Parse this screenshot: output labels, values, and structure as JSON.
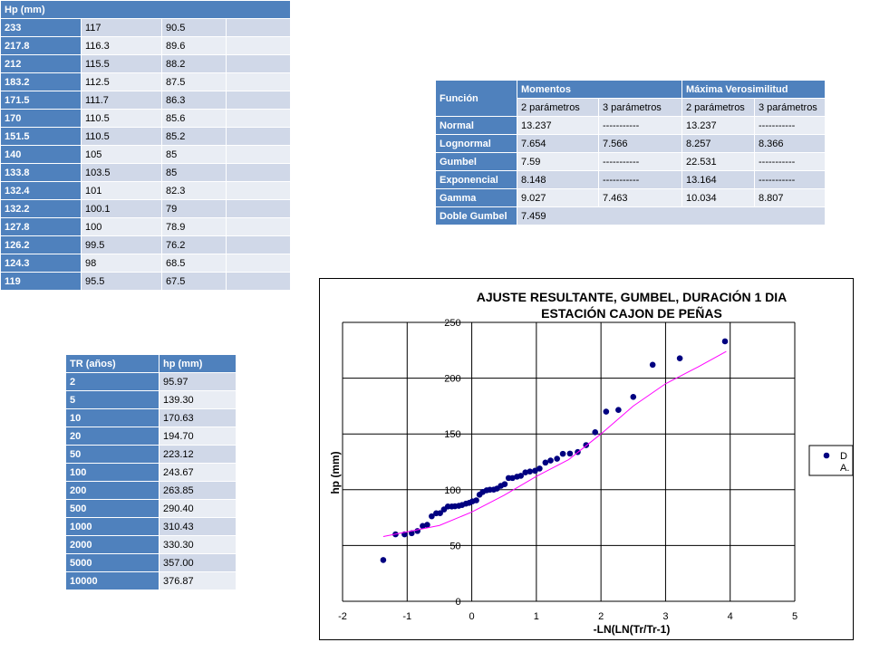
{
  "table1": {
    "header": "Hp (mm)",
    "rows": [
      [
        "233",
        "117",
        "90.5"
      ],
      [
        "217.8",
        "116.3",
        "89.6"
      ],
      [
        "212",
        "115.5",
        "88.2"
      ],
      [
        "183.2",
        "112.5",
        "87.5"
      ],
      [
        "171.5",
        "111.7",
        "86.3"
      ],
      [
        "170",
        "110.5",
        "85.6"
      ],
      [
        "151.5",
        "110.5",
        "85.2"
      ],
      [
        "140",
        "105",
        "85"
      ],
      [
        "133.8",
        "103.5",
        "85"
      ],
      [
        "132.4",
        "101",
        "82.3"
      ],
      [
        "132.2",
        "100.1",
        "79"
      ],
      [
        "127.8",
        "100",
        "78.9"
      ],
      [
        "126.2",
        "99.5",
        "76.2"
      ],
      [
        "124.3",
        "98",
        "68.5"
      ],
      [
        "119",
        "95.5",
        "67.5"
      ]
    ]
  },
  "table2": {
    "funcion": "Función",
    "groups": [
      "Momentos",
      "Máxima Verosimilitud"
    ],
    "subheaders": [
      "2 parámetros",
      "3 parámetros",
      "2 parámetros",
      "3 parámetros"
    ],
    "rows": [
      [
        "Normal",
        "13.237",
        "-----------",
        "13.237",
        "-----------"
      ],
      [
        "Lognormal",
        "7.654",
        "7.566",
        "8.257",
        "8.366"
      ],
      [
        "Gumbel",
        "7.59",
        "-----------",
        "22.531",
        "-----------"
      ],
      [
        "Exponencial",
        "8.148",
        "-----------",
        "13.164",
        "-----------"
      ],
      [
        "Gamma",
        "9.027",
        "7.463",
        "10.034",
        "8.807"
      ],
      [
        "Doble Gumbel",
        "7.459"
      ]
    ]
  },
  "table3": {
    "headers": [
      "TR (años)",
      "hp (mm)"
    ],
    "rows": [
      [
        "2",
        "95.97"
      ],
      [
        "5",
        "139.30"
      ],
      [
        "10",
        "170.63"
      ],
      [
        "20",
        "194.70"
      ],
      [
        "50",
        "223.12"
      ],
      [
        "100",
        "243.67"
      ],
      [
        "200",
        "263.85"
      ],
      [
        "500",
        "290.40"
      ],
      [
        "1000",
        "310.43"
      ],
      [
        "2000",
        "330.30"
      ],
      [
        "5000",
        "357.00"
      ],
      [
        "10000",
        "376.87"
      ]
    ]
  },
  "chart_data": {
    "type": "scatter",
    "title": "AJUSTE RESULTANTE, GUMBEL, DURACIÓN 1 DIA",
    "subtitle": "ESTACIÓN CAJON DE PEÑAS",
    "x_label": "-LN(LN(Tr/Tr-1)",
    "y_label": "hp (mm)",
    "xlim": [
      -2,
      5
    ],
    "xticks": [
      -2,
      -1,
      0,
      1,
      2,
      3,
      4,
      5
    ],
    "ylim": [
      0,
      250
    ],
    "yticks": [
      0,
      50,
      100,
      150,
      200,
      250
    ],
    "grid": true,
    "series": [
      {
        "name": "D",
        "color": "#000080",
        "mode": "markers",
        "x": [
          3.92,
          3.22,
          2.8,
          2.5,
          2.27,
          2.08,
          1.91,
          1.77,
          1.64,
          1.52,
          1.41,
          1.32,
          1.22,
          1.14,
          1.05,
          0.98,
          0.9,
          0.83,
          0.76,
          0.7,
          0.63,
          0.57,
          0.51,
          0.45,
          0.39,
          0.34,
          0.28,
          0.23,
          0.17,
          0.12,
          0.07,
          0.01,
          -0.04,
          -0.09,
          -0.15,
          -0.2,
          -0.26,
          -0.31,
          -0.37,
          -0.43,
          -0.49,
          -0.55,
          -0.62,
          -0.69,
          -0.76,
          -0.84,
          -0.93,
          -1.04,
          -1.18,
          -1.37
        ],
        "values": [
          233,
          217.8,
          212,
          183.2,
          171.5,
          170,
          151.5,
          140,
          133.8,
          132.4,
          132.2,
          127.8,
          126.2,
          124.3,
          119,
          117,
          116.3,
          115.5,
          112.5,
          111.7,
          110.5,
          110.5,
          105,
          103.5,
          101,
          100.1,
          100,
          99.5,
          98,
          95.5,
          90.5,
          89.6,
          88.2,
          87.5,
          86.3,
          85.6,
          85.2,
          85,
          85,
          82.3,
          79,
          78.9,
          76.2,
          68.5,
          67.5,
          63,
          61,
          60,
          60,
          37
        ]
      },
      {
        "name": "A.",
        "color": "#ff00ff",
        "mode": "line",
        "x": [
          -1.37,
          -0.5,
          0,
          0.5,
          1,
          1.5,
          2,
          2.5,
          3,
          3.5,
          3.94
        ],
        "values": [
          58,
          68,
          80,
          95,
          112,
          127,
          150,
          175,
          195,
          210,
          224
        ]
      }
    ]
  }
}
